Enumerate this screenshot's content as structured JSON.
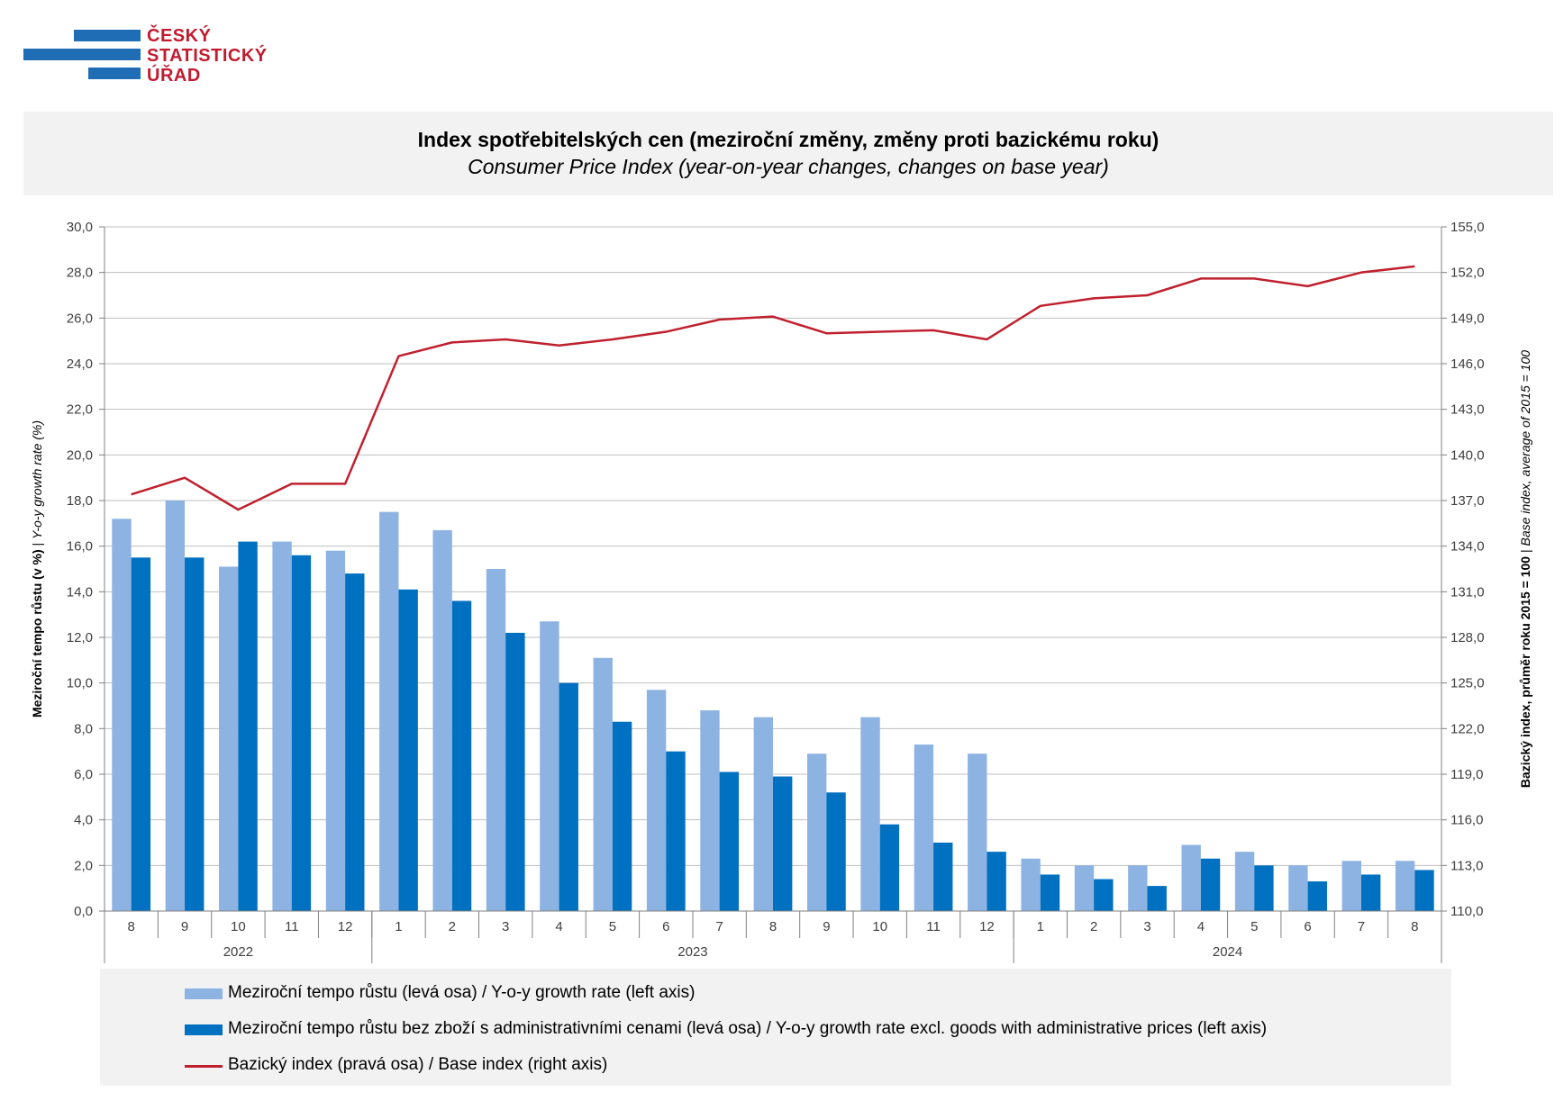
{
  "logo": {
    "lines": [
      "ČESKÝ",
      "STATISTICKÝ",
      "ÚŘAD"
    ]
  },
  "title": {
    "main": "Index spotřebitelských cen (meziroční změny, změny proti bazickému roku)",
    "sub": "Consumer Price Index (year-on-year changes, changes on base year)"
  },
  "colors": {
    "series1": "#8db3e2",
    "series2": "#0070c0",
    "line": "#c0202e",
    "grid": "#bfbfbf",
    "axis": "#808080"
  },
  "chart_data": {
    "type": "bar+line",
    "categories": [
      "8",
      "9",
      "10",
      "11",
      "12",
      "1",
      "2",
      "3",
      "4",
      "5",
      "6",
      "7",
      "8",
      "9",
      "10",
      "11",
      "12",
      "1",
      "2",
      "3",
      "4",
      "5",
      "6",
      "7",
      "8"
    ],
    "year_groups": [
      {
        "label": "2022",
        "count": 5
      },
      {
        "label": "2023",
        "count": 12
      },
      {
        "label": "2024",
        "count": 8
      }
    ],
    "left_axis": {
      "label_bold": "Meziroční tempo růstu (v %)",
      "label_sep": " | ",
      "label_italic": "Y-o-y growth rate (%)",
      "ylim": [
        0,
        30
      ],
      "ticks": [
        "0,0",
        "2,0",
        "4,0",
        "6,0",
        "8,0",
        "10,0",
        "12,0",
        "14,0",
        "16,0",
        "18,0",
        "20,0",
        "22,0",
        "24,0",
        "26,0",
        "28,0",
        "30,0"
      ]
    },
    "right_axis": {
      "label_bold": "Bazický index, průměr roku 2015 = 100",
      "label_sep": " | ",
      "label_italic": "Base index, average of 2015 = 100",
      "ylim": [
        110,
        155
      ],
      "ticks": [
        "110,0",
        "113,0",
        "116,0",
        "119,0",
        "122,0",
        "125,0",
        "128,0",
        "131,0",
        "134,0",
        "137,0",
        "140,0",
        "143,0",
        "146,0",
        "149,0",
        "152,0",
        "155,0"
      ]
    },
    "series": [
      {
        "name": "Meziroční tempo růstu (levá osa) / Y-o-y growth rate (left axis)",
        "kind": "bar",
        "axis": "left",
        "values": [
          17.2,
          18.0,
          15.1,
          16.2,
          15.8,
          17.5,
          16.7,
          15.0,
          12.7,
          11.1,
          9.7,
          8.8,
          8.5,
          6.9,
          8.5,
          7.3,
          6.9,
          2.3,
          2.0,
          2.0,
          2.9,
          2.6,
          2.0,
          2.2,
          2.2
        ]
      },
      {
        "name": "Meziroční tempo růstu bez zboží s administrativními cenami (levá osa) / Y-o-y growth rate excl. goods with administrative prices (left axis)",
        "kind": "bar",
        "axis": "left",
        "values": [
          15.5,
          15.5,
          16.2,
          15.6,
          14.8,
          14.1,
          13.6,
          12.2,
          10.0,
          8.3,
          7.0,
          6.1,
          5.9,
          5.2,
          3.8,
          3.0,
          2.6,
          1.6,
          1.4,
          1.1,
          2.3,
          2.0,
          1.3,
          1.6,
          1.8
        ]
      },
      {
        "name": "Bazický index (pravá osa) / Base index (right axis)",
        "kind": "line",
        "axis": "right",
        "values": [
          137.4,
          138.5,
          136.4,
          138.1,
          138.1,
          146.5,
          147.4,
          147.6,
          147.2,
          147.6,
          148.1,
          148.9,
          149.1,
          148.0,
          148.1,
          148.2,
          147.6,
          149.8,
          150.3,
          150.5,
          151.6,
          151.6,
          151.1,
          152.0,
          152.4
        ]
      }
    ],
    "grid": true,
    "legend_position": "bottom"
  }
}
